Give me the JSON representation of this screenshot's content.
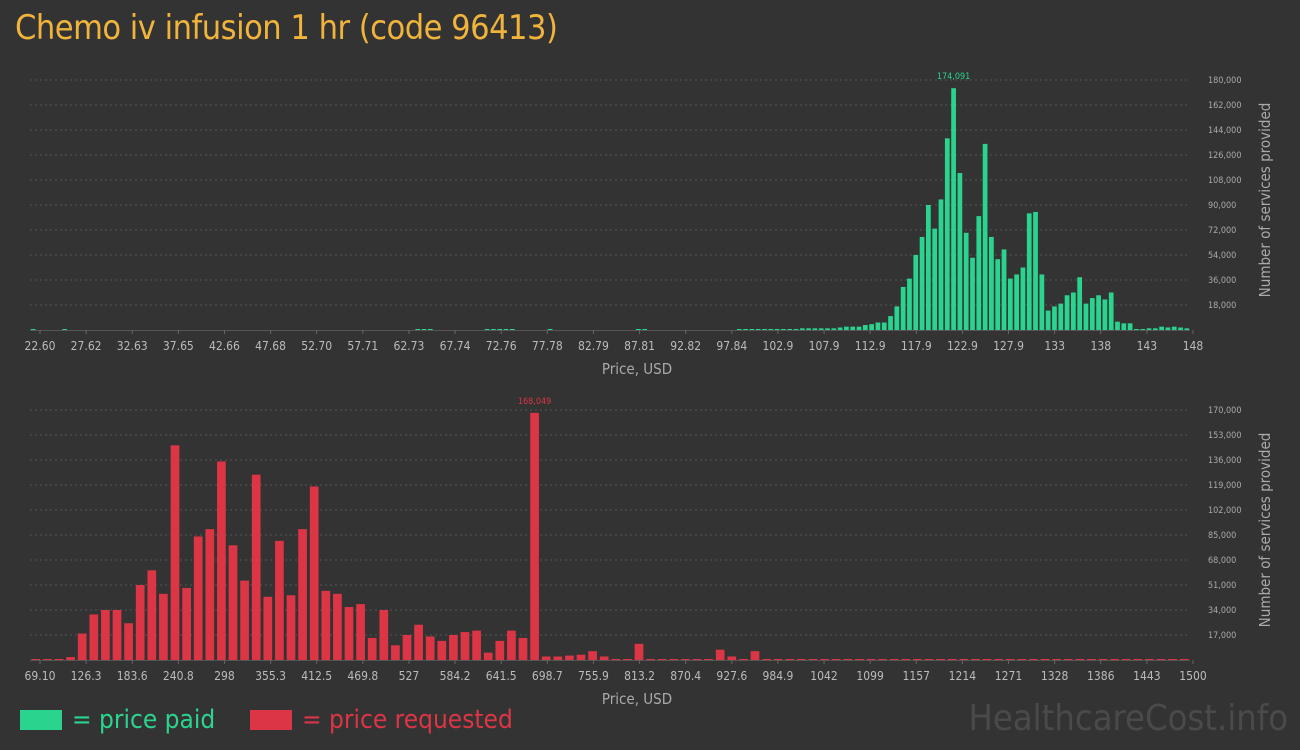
{
  "title": "Chemo iv infusion 1 hr (code 96413)",
  "watermark": "HealthcareCost.info",
  "legend": [
    {
      "label": "= price paid",
      "color": "#2ad48f"
    },
    {
      "label": "= price requested",
      "color": "#dc3545"
    }
  ],
  "chart_data": [
    {
      "type": "bar",
      "name": "price paid",
      "color": "#2ad48f",
      "xlabel": "Price, USD",
      "ylabel": "Number of services provided",
      "ylim": [
        0,
        180000
      ],
      "yticks": [
        "18,000",
        "36,000",
        "54,000",
        "72,000",
        "90,000",
        "108,000",
        "126,000",
        "144,000",
        "162,000",
        "180,000"
      ],
      "xtick_labels": [
        "22.60",
        "27.62",
        "32.63",
        "37.65",
        "42.66",
        "47.68",
        "52.70",
        "57.71",
        "62.73",
        "67.74",
        "72.76",
        "77.78",
        "82.79",
        "87.81",
        "92.82",
        "97.84",
        "102.9",
        "107.9",
        "112.9",
        "117.9",
        "122.9",
        "127.9",
        "133",
        "138",
        "143",
        "148"
      ],
      "peak_label": "174,091",
      "values": [
        600,
        0,
        0,
        0,
        0,
        600,
        0,
        0,
        0,
        0,
        0,
        0,
        0,
        0,
        0,
        0,
        0,
        0,
        0,
        0,
        0,
        0,
        0,
        0,
        0,
        0,
        0,
        0,
        0,
        0,
        0,
        0,
        0,
        0,
        0,
        0,
        0,
        0,
        0,
        0,
        0,
        0,
        0,
        0,
        0,
        0,
        0,
        0,
        0,
        0,
        0,
        0,
        0,
        0,
        0,
        0,
        0,
        0,
        0,
        0,
        0,
        600,
        600,
        600,
        0,
        0,
        0,
        0,
        0,
        0,
        0,
        0,
        600,
        600,
        600,
        600,
        600,
        0,
        0,
        0,
        0,
        0,
        600,
        0,
        0,
        0,
        0,
        0,
        0,
        0,
        0,
        0,
        0,
        0,
        0,
        0,
        600,
        600,
        0,
        0,
        0,
        0,
        0,
        0,
        0,
        0,
        0,
        0,
        0,
        0,
        0,
        0,
        600,
        600,
        600,
        600,
        600,
        600,
        600,
        600,
        600,
        600,
        1200,
        1200,
        1200,
        1200,
        1200,
        1200,
        1800,
        2400,
        2400,
        2400,
        3600,
        4200,
        5400,
        5400,
        10000,
        17000,
        31000,
        37000,
        54000,
        67000,
        90000,
        73000,
        94000,
        138000,
        174091,
        113000,
        70000,
        52000,
        82000,
        134000,
        67000,
        51000,
        58000,
        37000,
        40000,
        45000,
        84000,
        85000,
        40000,
        14000,
        17000,
        19000,
        25000,
        27000,
        38000,
        19000,
        23000,
        25000,
        22000,
        27000,
        6000,
        4800,
        4800,
        600,
        600,
        1200,
        1200,
        2400,
        1800,
        2400,
        1800,
        1200
      ],
      "value_count_note": ""
    },
    {
      "type": "bar",
      "name": "price requested",
      "color": "#dc3545",
      "xlabel": "Price, USD",
      "ylabel": "Number of services provided",
      "ylim": [
        0,
        170000
      ],
      "yticks": [
        "17,000",
        "34,000",
        "51,000",
        "68,000",
        "85,000",
        "102,000",
        "119,000",
        "136,000",
        "153,000",
        "170,000"
      ],
      "xtick_labels": [
        "69.10",
        "126.3",
        "183.6",
        "240.8",
        "298",
        "355.3",
        "412.5",
        "469.8",
        "527",
        "584.2",
        "641.5",
        "698.7",
        "755.9",
        "813.2",
        "870.4",
        "927.6",
        "984.9",
        "1042",
        "1099",
        "1157",
        "1214",
        "1271",
        "1328",
        "1386",
        "1443",
        "1500"
      ],
      "peak_label": "168,049",
      "values": [
        600,
        600,
        600,
        2000,
        18000,
        31000,
        34000,
        34000,
        25000,
        51000,
        61000,
        45000,
        146000,
        49000,
        84000,
        89000,
        135000,
        78000,
        54000,
        126000,
        43000,
        81000,
        44000,
        89000,
        118000,
        47000,
        45000,
        36000,
        38000,
        15000,
        34000,
        10000,
        17000,
        24000,
        16000,
        13000,
        17000,
        19000,
        20000,
        5000,
        13000,
        20000,
        15000,
        168049,
        2400,
        2400,
        3000,
        3600,
        6000,
        2400,
        600,
        600,
        11000,
        600,
        600,
        600,
        600,
        600,
        600,
        7000,
        2400,
        600,
        6000,
        600,
        600,
        600,
        600,
        600,
        600,
        600,
        600,
        600,
        600,
        600,
        600,
        600,
        600,
        600,
        600,
        600,
        600,
        600,
        600,
        600,
        600,
        600,
        600,
        600,
        600,
        600,
        600,
        600,
        600,
        600,
        600,
        600,
        600,
        600,
        600,
        600
      ]
    }
  ]
}
